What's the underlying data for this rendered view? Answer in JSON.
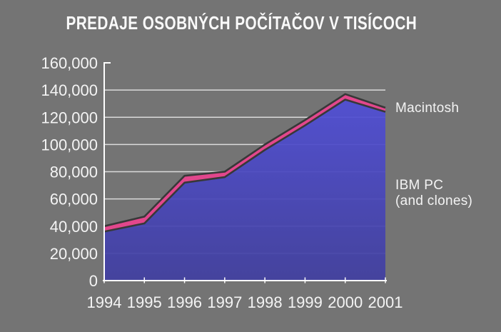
{
  "page": {
    "background": "#747474"
  },
  "title": {
    "text": "PREDAJE OSOBNÝCH POČÍTAČOV V TISÍCOCH"
  },
  "annotations": {
    "macintosh_label": "Macintosh",
    "ibm_label_line1": "IBM PC",
    "ibm_label_line2": "(and clones)"
  },
  "chart_data": {
    "type": "area",
    "stacked": true,
    "title": "PREDAJE OSOBNÝCH POČÍTAČOV V TISÍCOCH",
    "categories": [
      "1994",
      "1995",
      "1996",
      "1997",
      "1998",
      "1999",
      "2000",
      "2001"
    ],
    "series": [
      {
        "name": "IBM PC (and clones)",
        "values": [
          36000,
          42000,
          72000,
          76000,
          96000,
          114000,
          133000,
          124000
        ]
      },
      {
        "name": "Macintosh",
        "values": [
          4000,
          5000,
          5000,
          4000,
          4000,
          4000,
          4000,
          3000
        ]
      }
    ],
    "stacked_totals": [
      40000,
      47000,
      77000,
      80000,
      100000,
      118000,
      137000,
      127000
    ],
    "ylim": [
      0,
      160000
    ],
    "y_tick_step": 20000,
    "y_tick_labels": [
      "0",
      "20,000",
      "40,000",
      "60,000",
      "80,000",
      "100,000",
      "120,000",
      "140,000",
      "160,000"
    ],
    "grid": true,
    "legend_position": "right-annotations",
    "colors": {
      "background": "#747474",
      "ibm_area_top": "#504ed6",
      "ibm_area_bottom": "#413fa0",
      "macintosh_area": "#e2478c",
      "line_outline": "#383838",
      "gridline": "#e6e6e6",
      "axis": "#ffffff",
      "axis_text": "#f4f4f4"
    }
  }
}
